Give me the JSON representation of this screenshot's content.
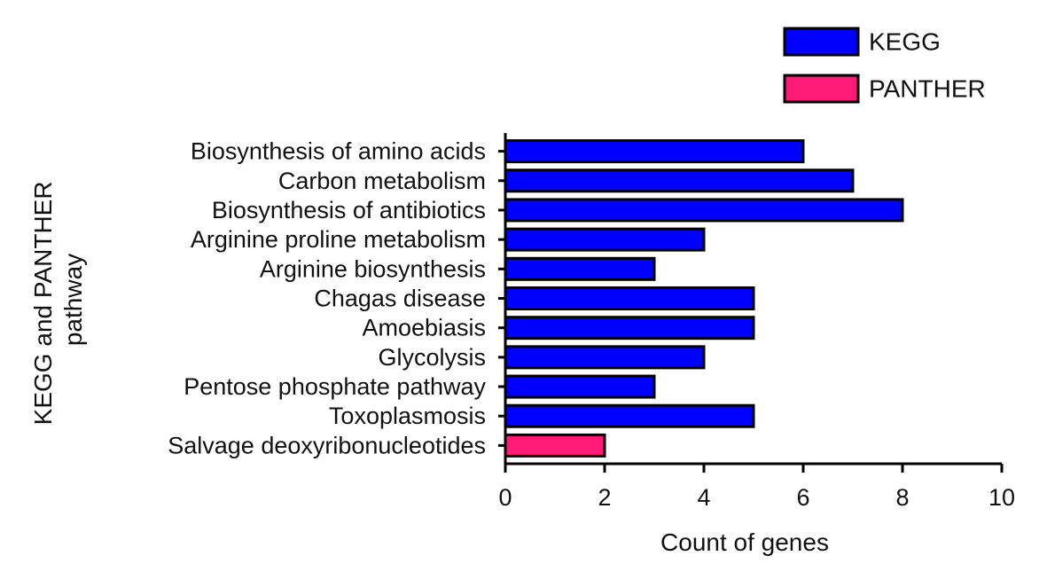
{
  "chart_data": {
    "type": "bar",
    "orientation": "horizontal",
    "xlabel": "Count of genes",
    "ylabel_lines": [
      "KEGG and PANTHER",
      "pathway"
    ],
    "xlim": [
      0,
      10
    ],
    "xticks": [
      0,
      2,
      4,
      6,
      8,
      10
    ],
    "grid": false,
    "legend_position": "top-right",
    "legend": [
      {
        "name": "KEGG",
        "color": "#0000ff"
      },
      {
        "name": "PANTHER",
        "color": "#ff1a75"
      }
    ],
    "categories": [
      "Biosynthesis of amino acids",
      "Carbon metabolism",
      "Biosynthesis of antibiotics",
      "Arginine proline metabolism",
      "Arginine biosynthesis",
      "Chagas disease",
      "Amoebiasis",
      "Glycolysis",
      "Pentose phosphate pathway",
      "Toxoplasmosis",
      "Salvage deoxyribonucleotides"
    ],
    "values": [
      6,
      7,
      8,
      4,
      3,
      5,
      5,
      4,
      3,
      5,
      2
    ],
    "source": [
      "KEGG",
      "KEGG",
      "KEGG",
      "KEGG",
      "KEGG",
      "KEGG",
      "KEGG",
      "KEGG",
      "KEGG",
      "KEGG",
      "PANTHER"
    ]
  }
}
